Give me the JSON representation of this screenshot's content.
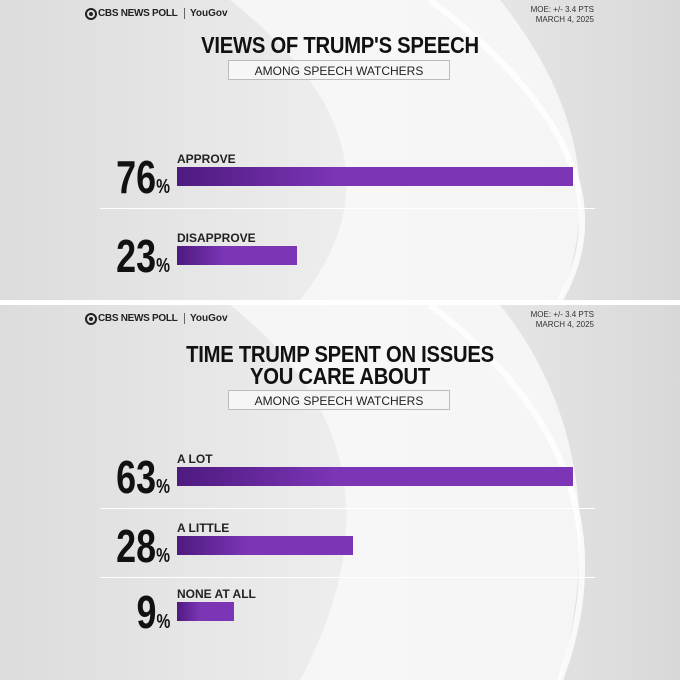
{
  "chart_data": [
    {
      "type": "bar",
      "source": "CBS NEWS POLL",
      "partner": "YouGov",
      "moe": "MOE: +/- 3.4 PTS",
      "date": "MARCH 4, 2025",
      "title": "VIEWS OF TRUMP'S SPEECH",
      "subtitle": "AMONG SPEECH WATCHERS",
      "categories": [
        "APPROVE",
        "DISAPPROVE"
      ],
      "values": [
        76,
        23
      ],
      "value_labels": [
        "76%",
        "23%"
      ],
      "color": "#7b35b5"
    },
    {
      "type": "bar",
      "source": "CBS NEWS POLL",
      "partner": "YouGov",
      "moe": "MOE: +/- 3.4 PTS",
      "date": "MARCH 4, 2025",
      "title": "TIME TRUMP SPENT ON ISSUES YOU CARE ABOUT",
      "subtitle": "AMONG SPEECH WATCHERS",
      "categories": [
        "A LOT",
        "A LITTLE",
        "NONE AT ALL"
      ],
      "values": [
        63,
        28,
        9
      ],
      "value_labels": [
        "63%",
        "28%",
        "9%"
      ],
      "color": "#7b35b5"
    }
  ]
}
